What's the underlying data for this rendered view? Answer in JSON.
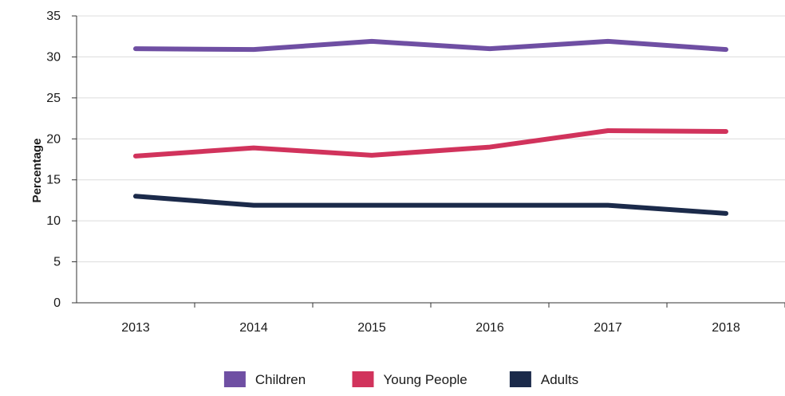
{
  "chart_data": {
    "type": "line",
    "title": "",
    "xlabel": "",
    "ylabel": "Percentage",
    "x": [
      "2013",
      "2014",
      "2015",
      "2016",
      "2017",
      "2018"
    ],
    "ylim": [
      0,
      35
    ],
    "yticks": [
      0,
      5,
      10,
      15,
      20,
      25,
      30,
      35
    ],
    "grid": "horizontal",
    "legend_position": "bottom",
    "series": [
      {
        "name": "Children",
        "color": "#6f4fa3",
        "values": [
          31,
          30.9,
          31.9,
          31,
          31.9,
          30.9
        ]
      },
      {
        "name": "Young People",
        "color": "#d1335c",
        "values": [
          17.9,
          18.9,
          18,
          19,
          21,
          20.9
        ]
      },
      {
        "name": "Adults",
        "color": "#1b2a4a",
        "values": [
          13,
          11.9,
          11.9,
          11.9,
          11.9,
          10.9
        ]
      }
    ]
  }
}
